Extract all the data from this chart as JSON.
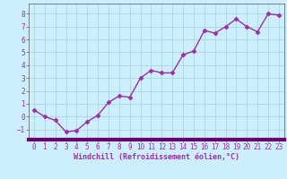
{
  "x": [
    0,
    1,
    2,
    3,
    4,
    5,
    6,
    7,
    8,
    9,
    10,
    11,
    12,
    13,
    14,
    15,
    16,
    17,
    18,
    19,
    20,
    21,
    22,
    23
  ],
  "y": [
    0.5,
    0.0,
    -0.3,
    -1.2,
    -1.1,
    -0.4,
    0.1,
    1.1,
    1.6,
    1.5,
    3.0,
    3.6,
    3.4,
    3.4,
    4.8,
    5.1,
    6.7,
    6.5,
    7.0,
    7.6,
    7.0,
    6.6,
    8.0,
    7.9
  ],
  "line_color": "#9b30a0",
  "marker": "D",
  "markersize": 2.5,
  "linewidth": 1.0,
  "xlabel": "Windchill (Refroidissement éolien,°C)",
  "xlabel_fontsize": 6,
  "xlim": [
    -0.5,
    23.5
  ],
  "ylim": [
    -1.8,
    8.8
  ],
  "yticks": [
    -1,
    0,
    1,
    2,
    3,
    4,
    5,
    6,
    7,
    8
  ],
  "xticks": [
    0,
    1,
    2,
    3,
    4,
    5,
    6,
    7,
    8,
    9,
    10,
    11,
    12,
    13,
    14,
    15,
    16,
    17,
    18,
    19,
    20,
    21,
    22,
    23
  ],
  "tick_fontsize": 5.5,
  "background_color": "#cceeff",
  "grid_color": "#aad8d8",
  "spine_color": "#555555",
  "bottom_bar_color": "#6a006a",
  "text_color": "#9b30a0"
}
